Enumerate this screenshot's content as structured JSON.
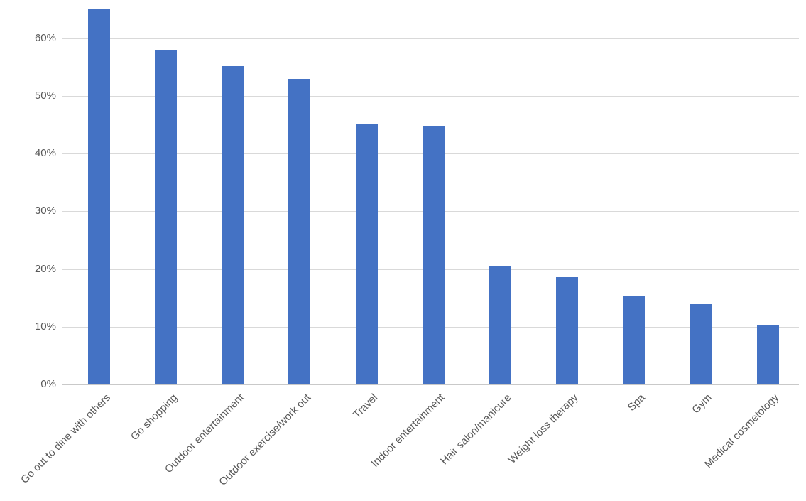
{
  "chart_data": {
    "type": "bar",
    "title": "",
    "xlabel": "",
    "ylabel": "",
    "categories": [
      "Go out to dine with others",
      "Go shopping",
      "Outdoor entertainment",
      "Outdoor exercise/work out",
      "Travel",
      "Indoor entertainment",
      "Hair salon/manicure",
      "Weight loss therapy",
      "Spa",
      "Gym",
      "Medical cosmetology"
    ],
    "values": [
      65,
      57.8,
      55.1,
      52.9,
      45.2,
      44.8,
      20.6,
      18.6,
      15.4,
      13.9,
      10.4
    ],
    "values_unit": "percent",
    "ylim": [
      0,
      65
    ],
    "ytick_interval": 10,
    "yticks": [
      "0%",
      "10%",
      "20%",
      "30%",
      "40%",
      "50%",
      "60%"
    ],
    "ytick_values": [
      0,
      10,
      20,
      30,
      40,
      50,
      60
    ],
    "grid": true,
    "legend": false,
    "bar_color": "#4472C4",
    "gridline_color": "#D9D9D9",
    "axis_line_color": "#C9C9C9",
    "tick_label_color": "#595959"
  }
}
